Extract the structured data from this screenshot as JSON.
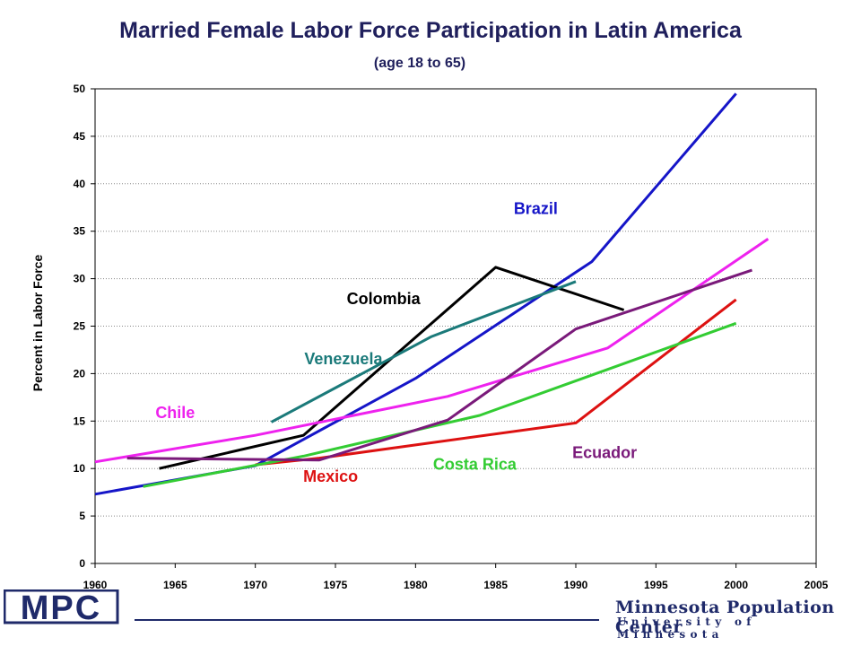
{
  "chart_data": {
    "type": "line",
    "title": "Married Female Labor Force Participation in Latin America",
    "subtitle": "(age 18 to 65)",
    "ylabel": "Percent in Labor Force",
    "xlabel": "",
    "xlim": [
      1960,
      2005
    ],
    "ylim": [
      0,
      50
    ],
    "xticks": [
      "1960",
      "1965",
      "1970",
      "1975",
      "1980",
      "1985",
      "1990",
      "1995",
      "2000",
      "2005"
    ],
    "yticks": [
      "0",
      "5",
      "10",
      "15",
      "20",
      "25",
      "30",
      "35",
      "40",
      "45",
      "50"
    ],
    "grid": "horizontal dotted",
    "legend": "inline labels",
    "series": [
      {
        "name": "Brazil",
        "color": "#1515c8",
        "label_at": [
          1987.5,
          36.8
        ],
        "points": [
          [
            1960,
            7.3
          ],
          [
            1970,
            10.3
          ],
          [
            1980,
            19.5
          ],
          [
            1991,
            31.8
          ],
          [
            2000,
            49.5
          ]
        ]
      },
      {
        "name": "Colombia",
        "color": "#000000",
        "label_at": [
          1978,
          27.3
        ],
        "points": [
          [
            1964,
            10.0
          ],
          [
            1973,
            13.5
          ],
          [
            1985,
            31.2
          ],
          [
            1993,
            26.7
          ]
        ]
      },
      {
        "name": "Venezuela",
        "color": "#1b7a7a",
        "label_at": [
          1975.5,
          21.0
        ],
        "points": [
          [
            1971,
            14.9
          ],
          [
            1981,
            23.9
          ],
          [
            1990,
            29.7
          ]
        ]
      },
      {
        "name": "Chile",
        "color": "#ee22ee",
        "label_at": [
          1965,
          15.3
        ],
        "points": [
          [
            1960,
            10.7
          ],
          [
            1970,
            13.5
          ],
          [
            1982,
            17.6
          ],
          [
            1992,
            22.7
          ],
          [
            2002,
            34.2
          ]
        ]
      },
      {
        "name": "Mexico",
        "color": "#dd1111",
        "label_at": [
          1974.7,
          8.6
        ],
        "points": [
          [
            1970,
            10.4
          ],
          [
            1974,
            11.1
          ],
          [
            1990,
            14.8
          ],
          [
            2000,
            27.8
          ]
        ]
      },
      {
        "name": "Costa Rica",
        "color": "#33cc33",
        "label_at": [
          1983.7,
          9.9
        ],
        "points": [
          [
            1963,
            8.1
          ],
          [
            1973,
            11.3
          ],
          [
            1984,
            15.6
          ],
          [
            2000,
            25.3
          ]
        ]
      },
      {
        "name": "Ecuador",
        "color": "#7a1a7a",
        "label_at": [
          1991.8,
          11.1
        ],
        "points": [
          [
            1962,
            11.1
          ],
          [
            1974,
            10.9
          ],
          [
            1982,
            15.1
          ],
          [
            1990,
            24.7
          ],
          [
            2001,
            30.9
          ]
        ]
      }
    ]
  },
  "footer": {
    "logo_text": "MPC",
    "org_name": "Minnesota Population Center",
    "university": "University of Minnesota"
  }
}
